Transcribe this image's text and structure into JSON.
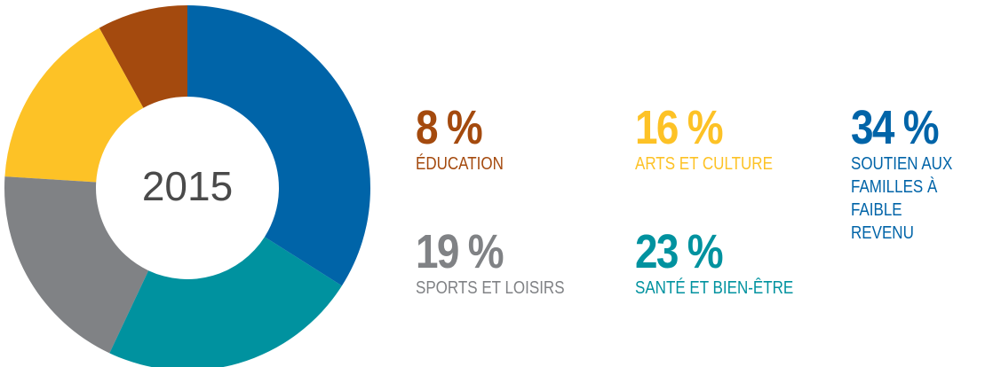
{
  "chart_data": {
    "type": "donut",
    "center_label": "2015",
    "categories": [
      "SOUTIEN AUX FAMILLES À FAIBLE REVENU",
      "SANTÉ ET BIEN-ÊTRE",
      "SPORTS ET LOISIRS",
      "ARTS ET CULTURE",
      "ÉDUCATION"
    ],
    "values": [
      34,
      23,
      19,
      16,
      8
    ],
    "value_labels": [
      "34 %",
      "23 %",
      "19 %",
      "16 %",
      "8 %"
    ],
    "colors": [
      "#0064a8",
      "#00929f",
      "#808285",
      "#fdc226",
      "#a44a0e"
    ]
  }
}
